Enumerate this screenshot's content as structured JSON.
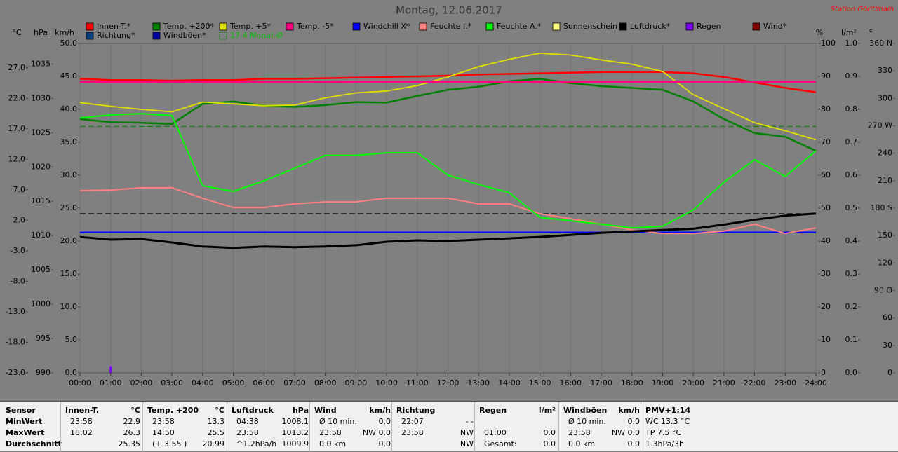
{
  "chart_data": {
    "type": "line",
    "title": "Montag, 12.06.2017",
    "annotation": "Station Göritzhain",
    "x": [
      0,
      1,
      2,
      3,
      4,
      5,
      6,
      7,
      8,
      9,
      10,
      11,
      12,
      13,
      14,
      15,
      16,
      17,
      18,
      19,
      20,
      21,
      22,
      23,
      24
    ],
    "xlim": [
      0,
      24
    ],
    "xticks": [
      {
        "value": 0,
        "label": "00:00"
      },
      {
        "value": 1,
        "label": "01:00"
      },
      {
        "value": 2,
        "label": "02:00"
      },
      {
        "value": 3,
        "label": "03:00"
      },
      {
        "value": 4,
        "label": "04:00"
      },
      {
        "value": 5,
        "label": "05:00"
      },
      {
        "value": 6,
        "label": "06:00"
      },
      {
        "value": 7,
        "label": "07:00"
      },
      {
        "value": 8,
        "label": "08:00"
      },
      {
        "value": 9,
        "label": "09:00"
      },
      {
        "value": 10,
        "label": "10:00"
      },
      {
        "value": 11,
        "label": "11:00"
      },
      {
        "value": 12,
        "label": "12:00"
      },
      {
        "value": 13,
        "label": "13:00"
      },
      {
        "value": 14,
        "label": "14:00"
      },
      {
        "value": 15,
        "label": "15:00"
      },
      {
        "value": 16,
        "label": "16:00"
      },
      {
        "value": 17,
        "label": "17:00"
      },
      {
        "value": 18,
        "label": "18:00"
      },
      {
        "value": 19,
        "label": "19:00"
      },
      {
        "value": 20,
        "label": "20:00"
      },
      {
        "value": 21,
        "label": "21:00"
      },
      {
        "value": 22,
        "label": "22:00"
      },
      {
        "value": 23,
        "label": "23:00"
      },
      {
        "value": 24,
        "label": "24:00"
      }
    ],
    "grid": true,
    "axes": [
      {
        "label": "°C",
        "lim": [
          -23,
          31
        ],
        "ticks": [
          {
            "value": -23,
            "label": "-23.0"
          },
          {
            "value": -18,
            "label": "-18.0"
          },
          {
            "value": -13,
            "label": "-13.0"
          },
          {
            "value": -8,
            "label": "-8.0"
          },
          {
            "value": -3,
            "label": "-3.0"
          },
          {
            "value": 2,
            "label": "2.0"
          },
          {
            "value": 7,
            "label": "7.0"
          },
          {
            "value": 12,
            "label": "12.0"
          },
          {
            "value": 17,
            "label": "17.0"
          },
          {
            "value": 22,
            "label": "22.0"
          },
          {
            "value": 27,
            "label": "27.0"
          }
        ]
      },
      {
        "label": "hPa",
        "lim": [
          990,
          1038
        ],
        "ticks": [
          990,
          995,
          1000,
          1005,
          1010,
          1015,
          1020,
          1025,
          1030,
          1035
        ]
      },
      {
        "label": "km/h",
        "lim": [
          0,
          50
        ],
        "ticks": [
          {
            "value": 0,
            "label": "0.0"
          },
          {
            "value": 5,
            "label": "5.0"
          },
          {
            "value": 10,
            "label": "10.0"
          },
          {
            "value": 15,
            "label": "15.0"
          },
          {
            "value": 20,
            "label": "20.0"
          },
          {
            "value": 25,
            "label": "25.0"
          },
          {
            "value": 30,
            "label": "30.0"
          },
          {
            "value": 35,
            "label": "35.0"
          },
          {
            "value": 40,
            "label": "40.0"
          },
          {
            "value": 45,
            "label": "45.0"
          },
          {
            "value": 50,
            "label": "50.0"
          }
        ]
      },
      {
        "label": "%",
        "lim": [
          0,
          100
        ],
        "ticks": [
          0,
          10,
          20,
          30,
          40,
          50,
          60,
          70,
          80,
          90,
          100
        ]
      },
      {
        "label": "l/m²",
        "lim": [
          0,
          1
        ],
        "ticks": [
          {
            "value": 0,
            "label": "0.0"
          },
          {
            "value": 0.1,
            "label": "0.1"
          },
          {
            "value": 0.2,
            "label": "0.2"
          },
          {
            "value": 0.3,
            "label": "0.3"
          },
          {
            "value": 0.4,
            "label": "0.4"
          },
          {
            "value": 0.5,
            "label": "0.5"
          },
          {
            "value": 0.6,
            "label": "0.6"
          },
          {
            "value": 0.7,
            "label": "0.7"
          },
          {
            "value": 0.8,
            "label": "0.8"
          },
          {
            "value": 0.9,
            "label": "0.9"
          },
          {
            "value": 1,
            "label": "1.0"
          }
        ]
      },
      {
        "label": "°",
        "lim": [
          0,
          360
        ],
        "ticks": [
          0,
          30,
          60,
          {
            "value": 90,
            "label": "90 O"
          },
          120,
          150,
          {
            "value": 180,
            "label": "180 S"
          },
          210,
          240,
          {
            "value": 270,
            "label": "270 W"
          },
          300,
          330,
          {
            "value": 360,
            "label": "360 N"
          }
        ]
      }
    ],
    "series": [
      {
        "name": "Innen-T.*",
        "color": "#ff0000",
        "axis": "°C",
        "values": [
          25.2,
          25.0,
          25.0,
          24.9,
          25.0,
          25.0,
          25.2,
          25.2,
          25.3,
          25.4,
          25.5,
          25.6,
          25.7,
          25.9,
          26.0,
          26.1,
          26.2,
          26.3,
          26.3,
          26.3,
          26.1,
          25.5,
          24.6,
          23.7,
          23.0
        ]
      },
      {
        "name": "Temp. +200*",
        "color": "#008000",
        "axis": "°C",
        "values": [
          18.6,
          18.1,
          18.0,
          17.8,
          21.1,
          21.5,
          20.8,
          20.6,
          20.9,
          21.4,
          21.3,
          22.4,
          23.4,
          23.9,
          24.8,
          25.2,
          24.5,
          24.0,
          23.7,
          23.4,
          21.5,
          18.6,
          16.3,
          15.7,
          13.4
        ]
      },
      {
        "name": "Temp. +5*",
        "color": "#e0e000",
        "axis": "°C",
        "values": [
          21.3,
          20.7,
          20.2,
          19.8,
          21.4,
          21.1,
          20.8,
          20.9,
          22.1,
          22.9,
          23.2,
          24.1,
          25.5,
          27.2,
          28.4,
          29.4,
          29.1,
          28.3,
          27.6,
          26.4,
          22.6,
          20.3,
          18.0,
          16.7,
          15.2
        ]
      },
      {
        "name": "Temp. -5*",
        "color": "#ff0080",
        "axis": "°C",
        "values": [
          24.7,
          24.7,
          24.7,
          24.7,
          24.7,
          24.7,
          24.7,
          24.7,
          24.7,
          24.7,
          24.7,
          24.7,
          24.7,
          24.7,
          24.7,
          24.7,
          24.7,
          24.7,
          24.7,
          24.7,
          24.7,
          24.7,
          24.7,
          24.7,
          24.7
        ]
      },
      {
        "name": "Windchill X*",
        "color": "#0000ff",
        "axis": "°C",
        "values": [
          0.0,
          0.0,
          0.0,
          0.0,
          0.0,
          0.0,
          0.0,
          0.0,
          0.0,
          0.0,
          0.0,
          0.0,
          0.0,
          0.0,
          0.0,
          0.0,
          0.0,
          0.0,
          0.0,
          0.0,
          0.0,
          0.0,
          0.0,
          0.0,
          0.0
        ]
      },
      {
        "name": "Feuchte I.*",
        "color": "#ff8080",
        "axis": "%",
        "values": [
          55.3,
          55.5,
          56.2,
          56.2,
          53.0,
          50.2,
          50.2,
          51.3,
          51.9,
          51.9,
          53.0,
          53.0,
          53.0,
          51.3,
          51.3,
          48.3,
          46.8,
          45.1,
          43.4,
          42.3,
          42.3,
          43.0,
          45.1,
          42.3,
          44.0
        ]
      },
      {
        "name": "Feuchte A.*",
        "color": "#00ff00",
        "axis": "%",
        "values": [
          77.4,
          78.3,
          78.7,
          78.1,
          56.8,
          55.1,
          58.3,
          62.1,
          66.0,
          66.0,
          66.8,
          66.8,
          60.0,
          57.2,
          54.7,
          47.2,
          46.2,
          45.1,
          44.0,
          44.5,
          49.4,
          57.9,
          64.7,
          59.6,
          67.4
        ]
      },
      {
        "name": "Sonnenschein",
        "color": "#ffff80"
      },
      {
        "name": "Luftdruck*",
        "color": "#000000",
        "axis": "hPa",
        "values": [
          1009.8,
          1009.4,
          1009.5,
          1009.0,
          1008.4,
          1008.2,
          1008.4,
          1008.3,
          1008.4,
          1008.6,
          1009.1,
          1009.3,
          1009.2,
          1009.4,
          1009.6,
          1009.8,
          1010.1,
          1010.4,
          1010.6,
          1010.8,
          1011.0,
          1011.6,
          1012.3,
          1012.9,
          1013.2
        ]
      },
      {
        "name": "Regen",
        "color": "#8000ff",
        "axis": "l/m²",
        "type": "bar",
        "x": [
          1.0
        ],
        "values": [
          0.02
        ]
      },
      {
        "name": "Wind*",
        "color": "#800000"
      },
      {
        "name": "Richtung*",
        "color": "#004080"
      },
      {
        "name": "Windböen*",
        "color": "#0000a0"
      }
    ],
    "reference_lines": [
      {
        "name": "17.4 Monat-Ø",
        "color": "#008000",
        "axis": "°C",
        "value": 17.4
      },
      {
        "color": "#000000",
        "axis": "hPa",
        "value": 1013.2
      }
    ]
  },
  "table": {
    "row_labels": [
      "Sensor",
      "MinWert",
      "MaxWert",
      "Durchschnitt"
    ],
    "groups": [
      {
        "name": "Innen-T.",
        "unit": "°C",
        "rows": [
          [
            "23:58",
            "22.9"
          ],
          [
            "18:02",
            "26.3"
          ],
          [
            null,
            "25.35"
          ]
        ]
      },
      {
        "name": "Temp. +200",
        "unit": "°C",
        "rows": [
          [
            "23:58",
            "13.3"
          ],
          [
            "14:50",
            "25.5"
          ],
          [
            "(+ 3.55 )",
            "20.99"
          ]
        ]
      },
      {
        "name": "Luftdruck",
        "unit": "hPa",
        "rows": [
          [
            "04:38",
            "1008.1"
          ],
          [
            "23:58",
            "1013.2"
          ],
          [
            "^1.2hPa/h",
            "1009.9"
          ]
        ]
      },
      {
        "name": "Wind",
        "unit": "km/h",
        "rows": [
          [
            "Ø 10 min.",
            "0.0"
          ],
          [
            "23:58",
            "NW 0.0"
          ],
          [
            "0.0 km",
            "0.0"
          ]
        ]
      },
      {
        "name": "Richtung",
        "rows": [
          [
            "22:07",
            "- -"
          ],
          [
            "23:58",
            "NW"
          ],
          [
            null,
            "NW"
          ]
        ]
      },
      {
        "name": "Regen",
        "unit": "l/m²",
        "rows": [
          [
            null,
            null
          ],
          [
            "01:00",
            "0.0"
          ],
          [
            "Gesamt:",
            "0.0"
          ]
        ]
      },
      {
        "name": "Windböen",
        "unit": "km/h",
        "rows": [
          [
            "Ø 10 min.",
            "0.0"
          ],
          [
            "23:58",
            "NW 0.0"
          ],
          [
            "0.0 km",
            "0.0"
          ]
        ]
      },
      {
        "name": "PMV+1:14",
        "rows": [
          [
            "WC 13.3 °C"
          ],
          [
            "TP 7.5 °C"
          ],
          [
            "1.3hPa/3h"
          ]
        ]
      }
    ]
  }
}
